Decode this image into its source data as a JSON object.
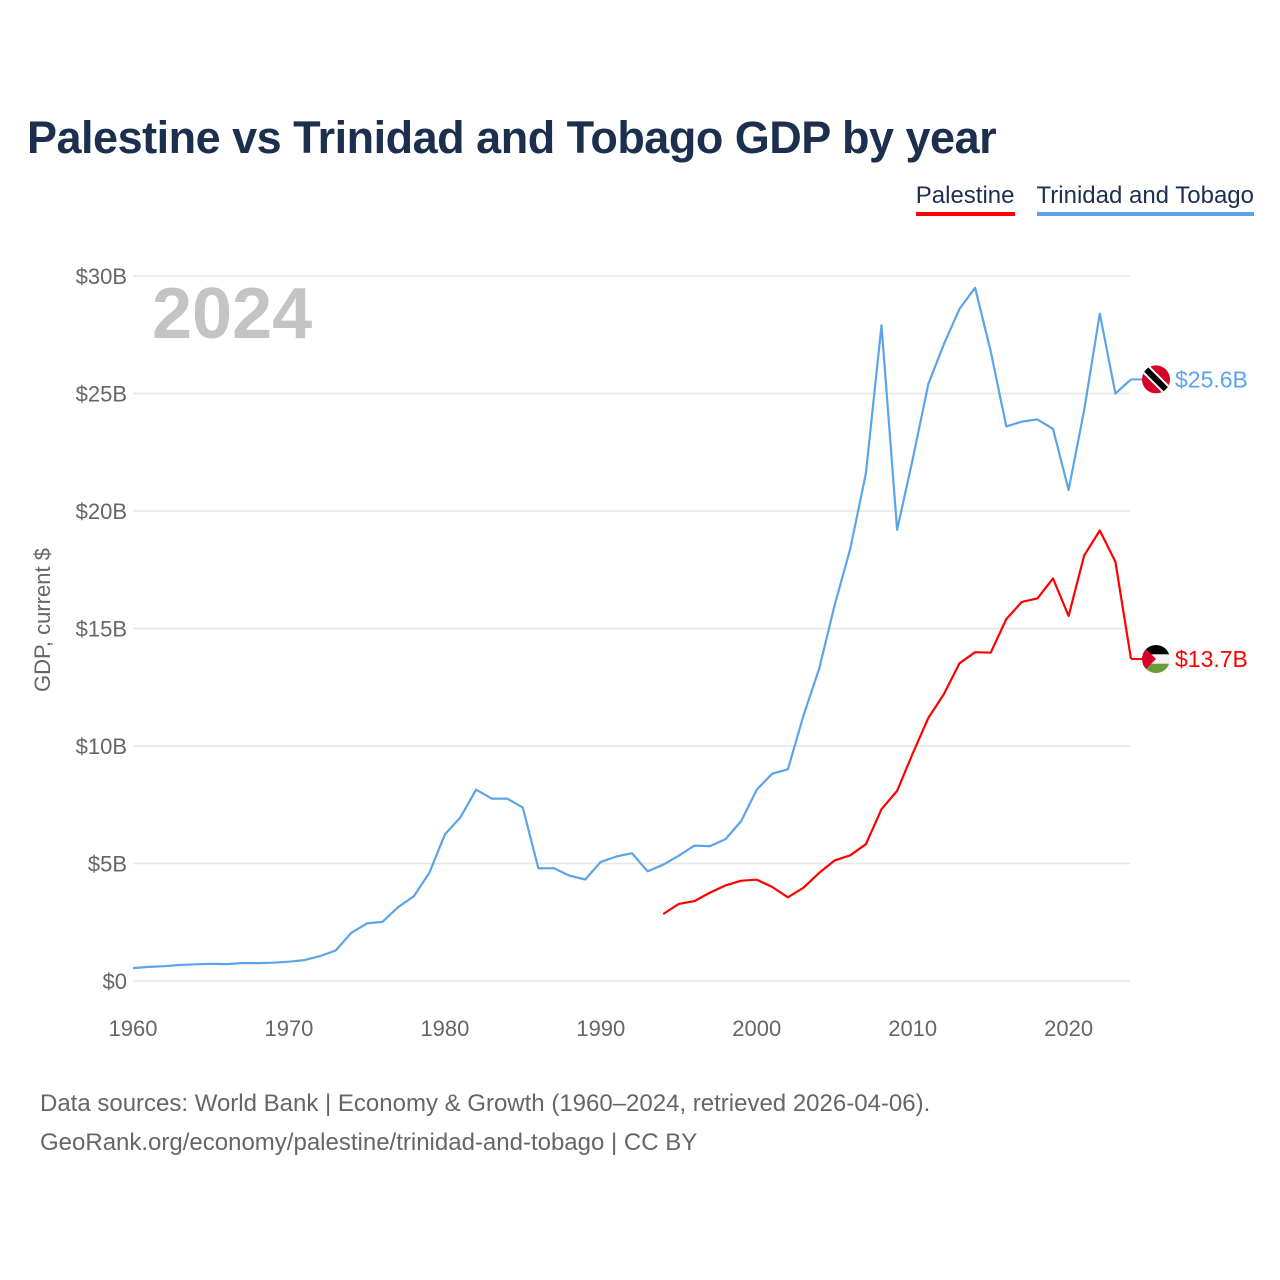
{
  "chart_data": {
    "type": "line",
    "title": "Palestine vs Trinidad and Tobago GDP by year",
    "xlabel": "",
    "ylabel": "GDP, current $",
    "year_label": "2024",
    "xlim": [
      1960,
      2024
    ],
    "ylim": [
      0,
      30
    ],
    "x_ticks": [
      1960,
      1970,
      1980,
      1990,
      2000,
      2010,
      2020
    ],
    "x_tick_labels": [
      "1960",
      "1970",
      "1980",
      "1990",
      "2000",
      "2010",
      "2020"
    ],
    "y_ticks": [
      0,
      5,
      10,
      15,
      20,
      25,
      30
    ],
    "y_tick_labels": [
      "$0",
      "$5B",
      "$10B",
      "$15B",
      "$20B",
      "$25B",
      "$30B"
    ],
    "grid": true,
    "legend_position": "top-right",
    "series": [
      {
        "name": "Palestine",
        "color": "#ff0000",
        "end_label": "$13.7B",
        "start_year": 1994,
        "values": [
          2.85,
          3.28,
          3.4,
          3.76,
          4.07,
          4.27,
          4.31,
          4.0,
          3.56,
          3.97,
          4.6,
          5.13,
          5.35,
          5.82,
          7.31,
          8.09,
          9.68,
          11.19,
          12.21,
          13.52,
          13.99,
          13.97,
          15.4,
          16.13,
          16.28,
          17.13,
          15.53,
          18.11,
          19.17,
          17.84,
          13.7
        ]
      },
      {
        "name": "Trinidad and Tobago",
        "color": "#5ba4ea",
        "end_label": "$25.6B",
        "start_year": 1960,
        "values": [
          0.55,
          0.6,
          0.63,
          0.68,
          0.71,
          0.73,
          0.72,
          0.76,
          0.76,
          0.78,
          0.82,
          0.89,
          1.06,
          1.3,
          2.05,
          2.45,
          2.52,
          3.14,
          3.6,
          4.6,
          6.24,
          6.97,
          8.14,
          7.76,
          7.76,
          7.38,
          4.79,
          4.8,
          4.48,
          4.32,
          5.07,
          5.3,
          5.44,
          4.67,
          4.95,
          5.33,
          5.76,
          5.74,
          6.04,
          6.81,
          8.15,
          8.82,
          9.01,
          11.3,
          13.28,
          16.0,
          18.4,
          21.6,
          27.9,
          19.2,
          22.2,
          25.4,
          27.1,
          28.6,
          29.5,
          26.8,
          23.6,
          23.8,
          23.9,
          23.5,
          20.9,
          24.3,
          28.4,
          25.0,
          25.6
        ]
      }
    ]
  },
  "footer": {
    "line1": "Data sources: World Bank | Economy & Growth (1960–2024, retrieved 2026-04-06).",
    "line2": "GeoRank.org/economy/palestine/trinidad-and-tobago | CC BY"
  }
}
